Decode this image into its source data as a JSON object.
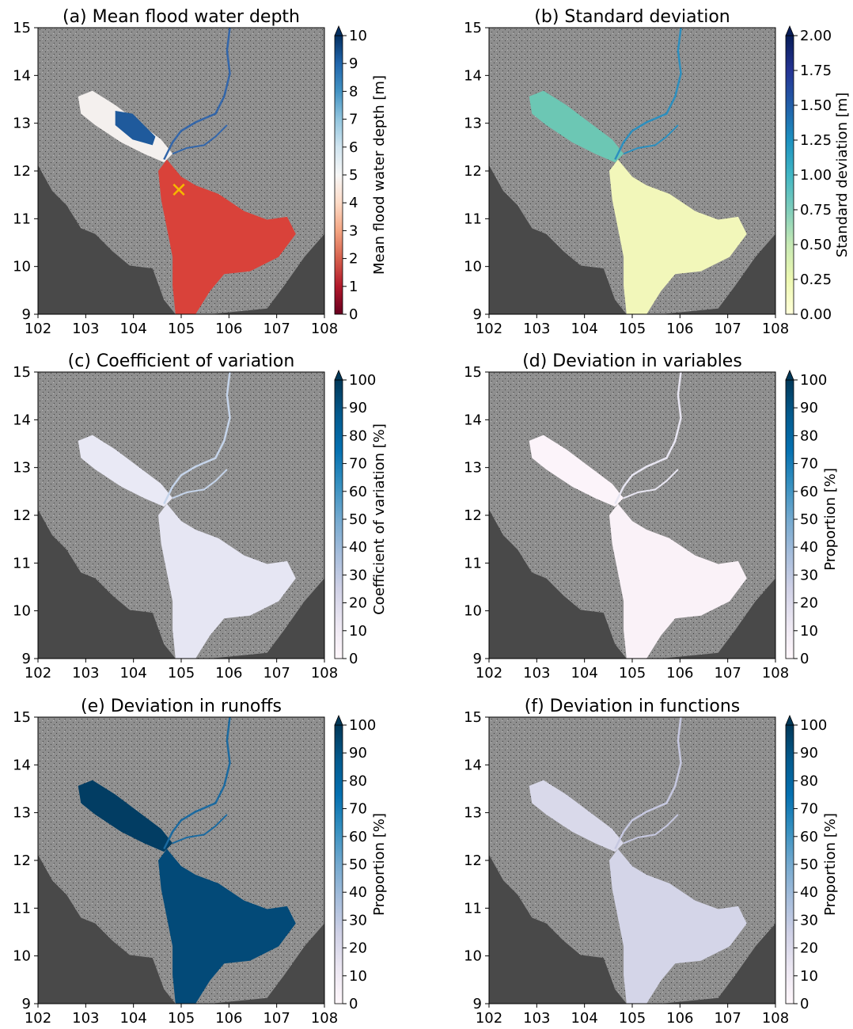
{
  "axes": {
    "x_ticks": [
      "102",
      "103",
      "104",
      "105",
      "106",
      "107",
      "108"
    ],
    "y_ticks": [
      "9",
      "10",
      "11",
      "12",
      "13",
      "14",
      "15"
    ],
    "xlim": [
      102,
      108
    ],
    "ylim": [
      9,
      15
    ]
  },
  "colors": {
    "ocean": "#494949",
    "nodata_land": "#8f8f8f",
    "frame": "#000000"
  },
  "marker": {
    "symbol": "✕",
    "color": "#f5b700",
    "lon": 104.95,
    "lat": 11.6
  },
  "panels": [
    {
      "title": "(a) Mean flood water depth",
      "colorbar_label": "Mean flood water depth [m]",
      "colorbar_ticks": [
        "0",
        "1",
        "2",
        "3",
        "4",
        "5",
        "6",
        "7",
        "8",
        "9",
        "10"
      ],
      "colormap": [
        "#67001f",
        "#b2182b",
        "#d6604d",
        "#f4a582",
        "#fddbc7",
        "#f7f7f7",
        "#d1e5f0",
        "#92c5de",
        "#4393c3",
        "#2166ac",
        "#053061"
      ],
      "lake_color": "#f4f0ee",
      "lake_core_color": "#1f5a9c",
      "delta_color": "#d9423a",
      "river_color": "#3366aa"
    },
    {
      "title": "(b) Standard deviation",
      "colorbar_label": "Standard deviation [m]",
      "colorbar_ticks": [
        "0.00",
        "0.25",
        "0.50",
        "0.75",
        "1.00",
        "1.25",
        "1.50",
        "1.75",
        "2.00"
      ],
      "colormap": [
        "#ffffd9",
        "#edf8b1",
        "#c7e9b4",
        "#7fcdbb",
        "#41b6c4",
        "#1d91c0",
        "#225ea8",
        "#253494",
        "#081d58"
      ],
      "lake_color": "#6cc7b4",
      "delta_color": "#f2f7ba",
      "river_color": "#2c8fbf"
    },
    {
      "title": "(c) Coefficient of variation",
      "colorbar_label": "Coefficient of variation [%]",
      "colorbar_ticks": [
        "0",
        "10",
        "20",
        "30",
        "40",
        "50",
        "60",
        "70",
        "80",
        "90",
        "100"
      ],
      "colormap": [
        "#fff7fb",
        "#ece7f2",
        "#d0d1e6",
        "#a6bddb",
        "#74a9cf",
        "#3690c0",
        "#0570b0",
        "#045a8d",
        "#023858"
      ],
      "lake_color": "#e9e9f5",
      "delta_color": "#e6e6f3",
      "river_color": "#c5d4ea"
    },
    {
      "title": "(d) Deviation in variables",
      "colorbar_label": "Proportion [%]",
      "colorbar_ticks": [
        "0",
        "10",
        "20",
        "30",
        "40",
        "50",
        "60",
        "70",
        "80",
        "90",
        "100"
      ],
      "colormap": [
        "#fff7fb",
        "#ece7f2",
        "#d0d1e6",
        "#a6bddb",
        "#74a9cf",
        "#3690c0",
        "#0570b0",
        "#045a8d",
        "#023858"
      ],
      "lake_color": "#fcf4fa",
      "delta_color": "#faf2f8",
      "river_color": "#e8e6f2"
    },
    {
      "title": "(e) Deviation in runoffs",
      "colorbar_label": "Proportion [%]",
      "colorbar_ticks": [
        "0",
        "10",
        "20",
        "30",
        "40",
        "50",
        "60",
        "70",
        "80",
        "90",
        "100"
      ],
      "colormap": [
        "#fff7fb",
        "#ece7f2",
        "#d0d1e6",
        "#a6bddb",
        "#74a9cf",
        "#3690c0",
        "#0570b0",
        "#045a8d",
        "#023858"
      ],
      "lake_color": "#023d63",
      "delta_color": "#034a78",
      "river_color": "#1b6aa0"
    },
    {
      "title": "(f) Deviation in functions",
      "colorbar_label": "Proportion [%]",
      "colorbar_ticks": [
        "0",
        "10",
        "20",
        "30",
        "40",
        "50",
        "60",
        "70",
        "80",
        "90",
        "100"
      ],
      "colormap": [
        "#fff7fb",
        "#ece7f2",
        "#d0d1e6",
        "#a6bddb",
        "#74a9cf",
        "#3690c0",
        "#0570b0",
        "#045a8d",
        "#023858"
      ],
      "lake_color": "#d9d9ea",
      "delta_color": "#d4d5e8",
      "river_color": "#c6c8e0"
    }
  ]
}
